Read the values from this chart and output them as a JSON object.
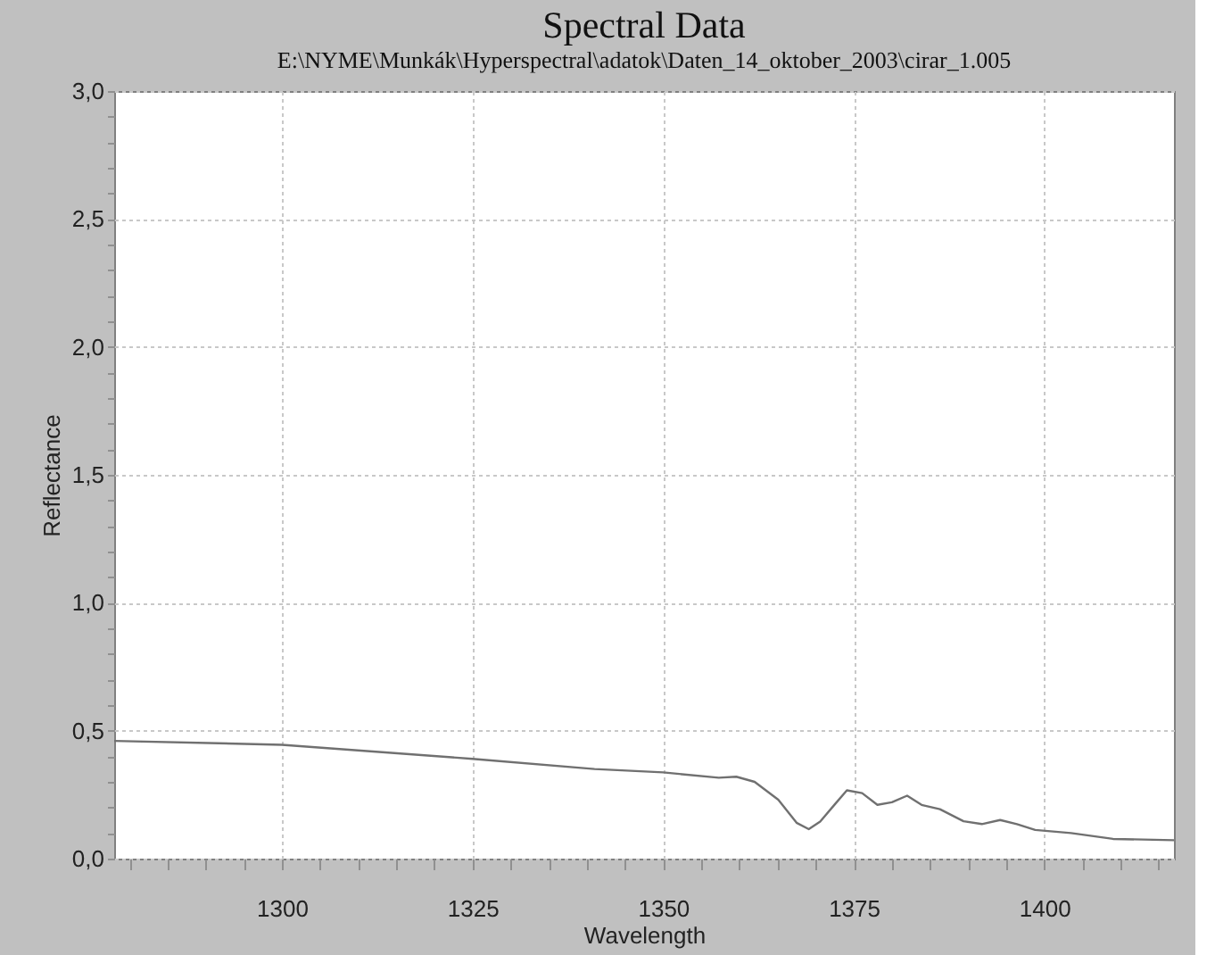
{
  "chart_data": {
    "type": "line",
    "title": "Spectral Data",
    "subtitle": "E:\\NYME\\Munkák\\Hyperspectral\\adatok\\Daten_14_oktober_2003\\cirar_1.005",
    "xlabel": "Wavelength",
    "ylabel": "Reflectance",
    "x": [
      1278,
      1300,
      1325,
      1341,
      1350,
      1357.3,
      1359.6,
      1362,
      1365.1,
      1367.5,
      1369.1,
      1370.6,
      1372.6,
      1374.1,
      1376.1,
      1378.1,
      1380,
      1382,
      1383.9,
      1386.3,
      1389.4,
      1391.8,
      1394.2,
      1396.4,
      1398.8,
      1403.5,
      1409,
      1417
    ],
    "series": [
      {
        "color": "#707070",
        "values": [
          0.46,
          0.445,
          0.39,
          0.35,
          0.337,
          0.316,
          0.32,
          0.3,
          0.23,
          0.14,
          0.115,
          0.145,
          0.215,
          0.267,
          0.256,
          0.21,
          0.22,
          0.246,
          0.21,
          0.193,
          0.146,
          0.135,
          0.151,
          0.135,
          0.112,
          0.1,
          0.077,
          0.072
        ]
      }
    ],
    "xlim": [
      1278,
      1417
    ],
    "xticks": [
      {
        "value": 1280,
        "label": null
      },
      {
        "value": 1285,
        "label": null
      },
      {
        "value": 1290,
        "label": null
      },
      {
        "value": 1295,
        "label": null
      },
      1300,
      {
        "value": 1305,
        "label": null
      },
      {
        "value": 1310,
        "label": null
      },
      {
        "value": 1315,
        "label": null
      },
      {
        "value": 1320,
        "label": null
      },
      1325,
      {
        "value": 1330,
        "label": null
      },
      {
        "value": 1335,
        "label": null
      },
      {
        "value": 1340,
        "label": null
      },
      {
        "value": 1345,
        "label": null
      },
      1350,
      {
        "value": 1355,
        "label": null
      },
      {
        "value": 1360,
        "label": null
      },
      {
        "value": 1365,
        "label": null
      },
      {
        "value": 1370,
        "label": null
      },
      1375,
      {
        "value": 1380,
        "label": null
      },
      {
        "value": 1385,
        "label": null
      },
      {
        "value": 1390,
        "label": null
      },
      {
        "value": 1395,
        "label": null
      },
      1400,
      {
        "value": 1405,
        "label": null
      },
      {
        "value": 1410,
        "label": null
      },
      {
        "value": 1415,
        "label": null
      }
    ],
    "ylim": [
      0,
      3
    ],
    "yticks": [
      {
        "value": 0,
        "label": "0,0"
      },
      {
        "value": 0.1,
        "label": null
      },
      {
        "value": 0.2,
        "label": null
      },
      {
        "value": 0.3,
        "label": null
      },
      {
        "value": 0.4,
        "label": null
      },
      {
        "value": 0.5,
        "label": "0,5"
      },
      {
        "value": 0.6,
        "label": null
      },
      {
        "value": 0.7,
        "label": null
      },
      {
        "value": 0.8,
        "label": null
      },
      {
        "value": 0.9,
        "label": null
      },
      {
        "value": 1.0,
        "label": "1,0"
      },
      {
        "value": 1.1,
        "label": null
      },
      {
        "value": 1.2,
        "label": null
      },
      {
        "value": 1.3,
        "label": null
      },
      {
        "value": 1.4,
        "label": null
      },
      {
        "value": 1.5,
        "label": "1,5"
      },
      {
        "value": 1.6,
        "label": null
      },
      {
        "value": 1.7,
        "label": null
      },
      {
        "value": 1.8,
        "label": null
      },
      {
        "value": 1.9,
        "label": null
      },
      {
        "value": 2.0,
        "label": "2,0"
      },
      {
        "value": 2.1,
        "label": null
      },
      {
        "value": 2.2,
        "label": null
      },
      {
        "value": 2.3,
        "label": null
      },
      {
        "value": 2.4,
        "label": null
      },
      {
        "value": 2.5,
        "label": "2,5"
      },
      {
        "value": 2.6,
        "label": null
      },
      {
        "value": 2.7,
        "label": null
      },
      {
        "value": 2.8,
        "label": null
      },
      {
        "value": 2.9,
        "label": null
      },
      {
        "value": 3.0,
        "label": "3,0"
      }
    ],
    "grid": true,
    "marker": "none",
    "line_style": "solid"
  }
}
